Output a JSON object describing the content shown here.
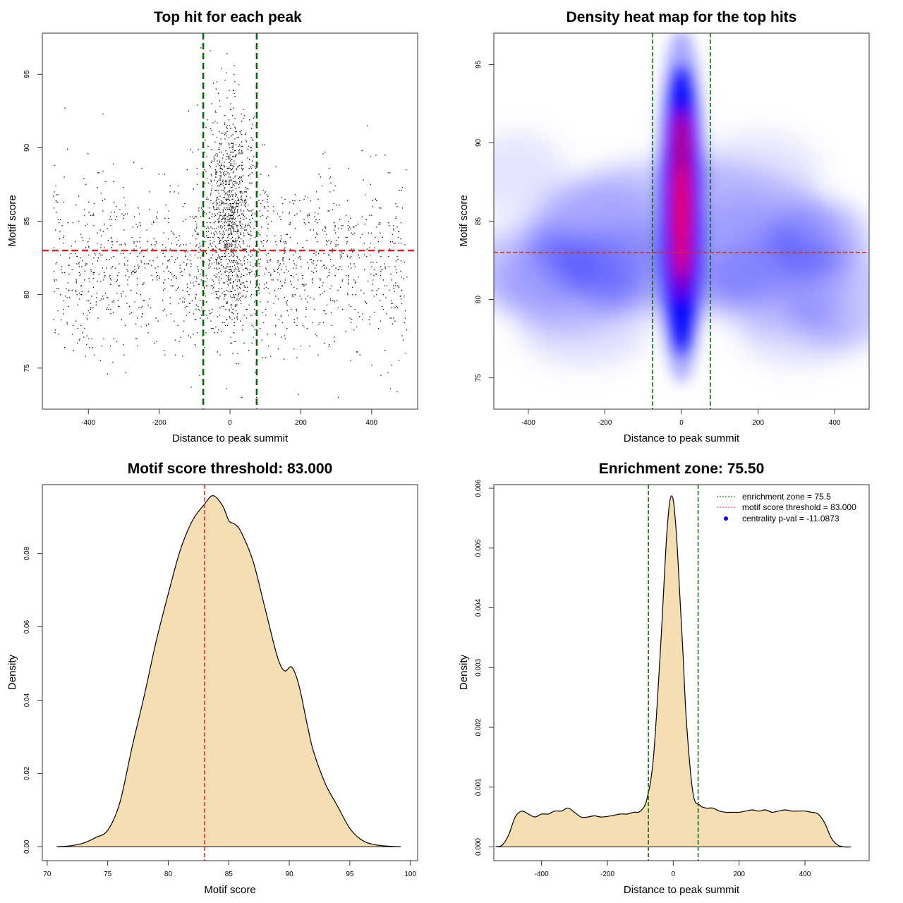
{
  "colors": {
    "threshold": "#d62728",
    "zone": "#006400",
    "fill": "#f5deb3",
    "points": "#000000",
    "heat_low": "#ffffff",
    "heat_mid": "#0000ff",
    "heat_high": "#ff0000",
    "centrality_marker": "#0000ff"
  },
  "chart_data": [
    {
      "id": "scatter",
      "type": "scatter",
      "title": "Top hit for each peak",
      "xlabel": "Distance to peak summit",
      "ylabel": "Motif score",
      "xlim": [
        -530,
        530
      ],
      "ylim": [
        72.2,
        97.8
      ],
      "xticks": [
        -400,
        -200,
        0,
        200,
        400
      ],
      "yticks": [
        75,
        80,
        85,
        90,
        95
      ],
      "hlines": [
        {
          "y": 83.0,
          "label": "threshold",
          "style": "dashed"
        }
      ],
      "vlines": [
        {
          "x": -75.5,
          "label": "zone",
          "style": "dashed"
        },
        {
          "x": 75.5,
          "label": "zone",
          "style": "dashed"
        }
      ],
      "n_points": 2600,
      "x_range": [
        -500,
        500
      ],
      "score_range": [
        73,
        97
      ],
      "central_cluster": {
        "x_center": 0,
        "x_spread": 35,
        "y_center": 85.5,
        "y_spread": 3.5,
        "fraction": 0.42
      },
      "background": {
        "y_center": 82.0,
        "y_spread": 3.0
      },
      "grid": false
    },
    {
      "id": "heatmap",
      "type": "heatmap",
      "title": "Density heat map for the top hits",
      "xlabel": "Distance to peak summit",
      "ylabel": "Motif score",
      "xlim": [
        -490,
        490
      ],
      "ylim": [
        73,
        97
      ],
      "xticks": [
        -400,
        -200,
        0,
        200,
        400
      ],
      "yticks": [
        75,
        80,
        85,
        90,
        95
      ],
      "hlines": [
        {
          "y": 83.0,
          "style": "dashed"
        }
      ],
      "vlines": [
        {
          "x": -75.5,
          "style": "dashed"
        },
        {
          "x": 75.5,
          "style": "dashed"
        }
      ],
      "hotspot": {
        "x_center": 0,
        "x_spread": 28,
        "y_center": 86,
        "y_spread": 4.2
      },
      "background_density": "diffuse low density across x, concentrated near scores 80-85",
      "grid": false
    },
    {
      "id": "score-density",
      "type": "area",
      "title": "Motif score threshold: 83.000",
      "xlabel": "Motif score",
      "ylabel": "Density",
      "xlim": [
        69.6,
        100.6
      ],
      "ylim": [
        -0.0038,
        0.0988
      ],
      "xticks": [
        70,
        75,
        80,
        85,
        90,
        95,
        100
      ],
      "yticks": [
        0.0,
        0.02,
        0.04,
        0.06,
        0.08
      ],
      "ytick_labels": [
        "0.00",
        "0.02",
        "0.04",
        "0.06",
        "0.08"
      ],
      "vlines": [
        {
          "x": 83.0,
          "style": "dashed"
        }
      ],
      "x": [
        70.8,
        72.0,
        73.0,
        74.0,
        75.0,
        76.0,
        77.0,
        78.0,
        79.0,
        80.0,
        81.0,
        82.0,
        83.0,
        83.7,
        84.5,
        85.0,
        85.5,
        86.0,
        87.0,
        88.0,
        89.0,
        89.6,
        90.2,
        90.8,
        91.5,
        92.0,
        93.0,
        94.0,
        95.0,
        96.0,
        97.0,
        98.0,
        99.2
      ],
      "y": [
        0.0,
        0.0003,
        0.001,
        0.0025,
        0.0045,
        0.012,
        0.027,
        0.041,
        0.056,
        0.069,
        0.081,
        0.089,
        0.0935,
        0.0958,
        0.093,
        0.089,
        0.088,
        0.086,
        0.078,
        0.065,
        0.052,
        0.048,
        0.049,
        0.044,
        0.033,
        0.026,
        0.017,
        0.011,
        0.005,
        0.0018,
        0.0006,
        0.0002,
        0.0
      ]
    },
    {
      "id": "distance-density",
      "type": "area",
      "title": "Enrichment zone: 75.50",
      "xlabel": "Distance to peak summit",
      "ylabel": "Density",
      "xlim": [
        -545,
        595
      ],
      "ylim": [
        -0.00023,
        0.00606
      ],
      "xticks": [
        -400,
        -200,
        0,
        200,
        400
      ],
      "yticks": [
        0.0,
        0.001,
        0.002,
        0.003,
        0.004,
        0.005,
        0.006
      ],
      "ytick_labels": [
        "0.000",
        "0.001",
        "0.002",
        "0.003",
        "0.004",
        "0.005",
        "0.006"
      ],
      "vlines": [
        {
          "x": -75.5,
          "style": "dashed"
        },
        {
          "x": 75.5,
          "style": "dashed"
        }
      ],
      "x": [
        -540,
        -520,
        -500,
        -480,
        -460,
        -440,
        -420,
        -400,
        -380,
        -360,
        -340,
        -320,
        -300,
        -280,
        -260,
        -240,
        -220,
        -200,
        -180,
        -160,
        -140,
        -120,
        -100,
        -80,
        -60,
        -40,
        -30,
        -20,
        -10,
        0,
        10,
        20,
        30,
        40,
        60,
        80,
        100,
        120,
        140,
        160,
        180,
        200,
        220,
        240,
        260,
        280,
        300,
        320,
        340,
        360,
        380,
        400,
        420,
        440,
        460,
        480,
        500,
        520,
        540
      ],
      "y": [
        0.0,
        3e-05,
        0.0002,
        0.0005,
        0.0006,
        0.00055,
        0.0005,
        0.00055,
        0.00055,
        0.0006,
        0.0006,
        0.00065,
        0.00058,
        0.0005,
        0.0005,
        0.00052,
        0.0005,
        0.00051,
        0.00053,
        0.00055,
        0.00055,
        0.00058,
        0.0006,
        0.0008,
        0.0015,
        0.0032,
        0.0042,
        0.0052,
        0.0058,
        0.0058,
        0.0052,
        0.0042,
        0.0032,
        0.0021,
        0.0009,
        0.0007,
        0.00065,
        0.00065,
        0.0006,
        0.00058,
        0.00058,
        0.00058,
        0.0006,
        0.00062,
        0.0006,
        0.00062,
        0.00058,
        0.0006,
        0.00062,
        0.0006,
        0.0006,
        0.0006,
        0.00058,
        0.00055,
        0.0004,
        0.00015,
        3e-05,
        0.0,
        0.0
      ],
      "legend": {
        "position": "top-right",
        "entries": [
          {
            "label": "enrichment zone = 75.5",
            "kind": "dotted-line",
            "color": "#006400"
          },
          {
            "label": "motif score threshold = 83.000",
            "kind": "dotted-line",
            "color": "#d62728"
          },
          {
            "label": "centrality p-val = -11.0873",
            "kind": "point",
            "color": "#0000ff"
          }
        ]
      }
    }
  ]
}
